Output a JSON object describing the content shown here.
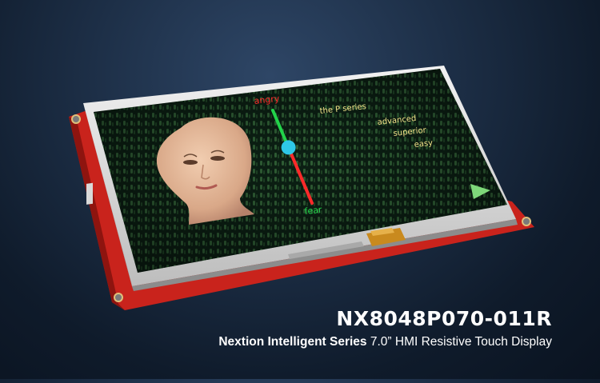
{
  "product": {
    "model": "NX8048P070-011R",
    "series_name": "Nextion Intelligent Series",
    "description": "7.0” HMI Resistive Touch Display"
  },
  "screen": {
    "slider": {
      "top_label": "angry",
      "bottom_label": "fear",
      "level": 0.4,
      "top_color": "#22d34a",
      "bottom_color": "#ff2a2a",
      "knob_color": "#2ec8e8"
    },
    "feature_lines": [
      "the P series",
      "advanced",
      "superior",
      "easy"
    ],
    "next_icon": "play-triangle-icon"
  },
  "colors": {
    "board": "#c9231c",
    "screen_background": "#0f2a1a",
    "arrow": "#7ed87a"
  }
}
